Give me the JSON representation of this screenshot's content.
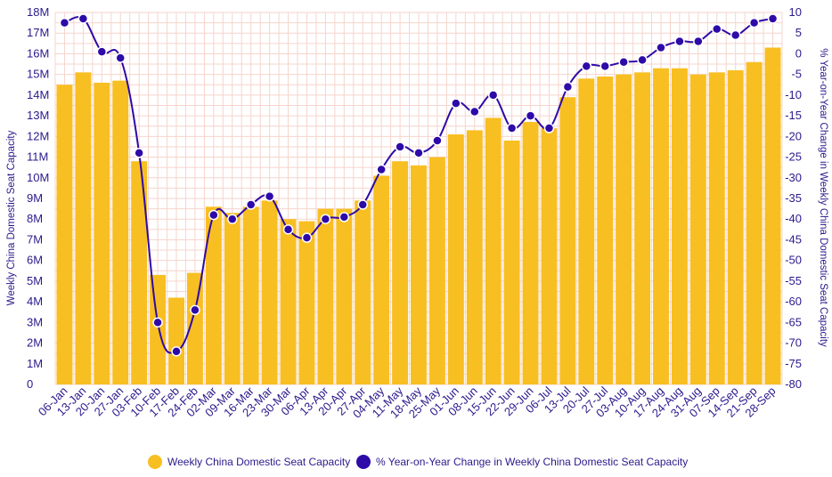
{
  "chart_data": {
    "type": "bar+line",
    "categories": [
      "06-Jan",
      "13-Jan",
      "20-Jan",
      "27-Jan",
      "03-Feb",
      "10-Feb",
      "17-Feb",
      "24-Feb",
      "02-Mar",
      "09-Mar",
      "16-Mar",
      "23-Mar",
      "30-Mar",
      "06-Apr",
      "13-Apr",
      "20-Apr",
      "27-Apr",
      "04-May",
      "11-May",
      "18-May",
      "25-May",
      "01-Jun",
      "08-Jun",
      "15-Jun",
      "22-Jun",
      "29-Jun",
      "06-Jul",
      "13-Jul",
      "20-Jul",
      "27-Jul",
      "03-Aug",
      "10-Aug",
      "17-Aug",
      "24-Aug",
      "31-Aug",
      "07-Sep",
      "14-Sep",
      "21-Sep",
      "28-Sep"
    ],
    "series": [
      {
        "name": "Weekly China Domestic Seat Capacity",
        "type": "bar",
        "axis": "left",
        "color": "#f8bf22",
        "values": [
          14.5,
          15.1,
          14.6,
          14.7,
          10.8,
          5.3,
          4.2,
          5.4,
          8.6,
          8.3,
          8.6,
          8.9,
          8.0,
          7.9,
          8.5,
          8.5,
          8.9,
          10.1,
          10.8,
          10.6,
          11.0,
          12.1,
          12.3,
          12.9,
          11.8,
          12.7,
          12.4,
          13.9,
          14.8,
          14.9,
          15.0,
          15.1,
          15.3,
          15.3,
          15.0,
          15.1,
          15.2,
          15.6,
          16.3
        ]
      },
      {
        "name": "% Year-on-Year Change in Weekly China Domestic Seat Capacity",
        "type": "line",
        "axis": "right",
        "color": "#2e0aa8",
        "values": [
          7.5,
          8.5,
          0.5,
          -1,
          -24,
          -65,
          -72,
          -62,
          -39,
          -40,
          -36.5,
          -34.5,
          -42.5,
          -44.5,
          -40,
          -39.5,
          -36.5,
          -28,
          -22.5,
          -24,
          -21,
          -12,
          -14,
          -10,
          -18,
          -15,
          -18,
          -8,
          -3,
          -3,
          -2,
          -1.5,
          1.5,
          3,
          3,
          6,
          4.5,
          7.5,
          8.5
        ]
      }
    ],
    "y_left": {
      "label": "Weekly China Domestic Seat Capacity",
      "min": 0,
      "max": 18,
      "ticks": [
        "0",
        "1M",
        "2M",
        "3M",
        "4M",
        "5M",
        "6M",
        "7M",
        "8M",
        "9M",
        "10M",
        "11M",
        "12M",
        "13M",
        "14M",
        "15M",
        "16M",
        "17M",
        "18M"
      ]
    },
    "y_right": {
      "label": "% Year-on-Year Change in Weekly China Domestic Seat Capacity",
      "min": -80,
      "max": 10,
      "ticks": [
        "10",
        "5",
        "0",
        "-5",
        "-10",
        "-15",
        "-20",
        "-25",
        "-30",
        "-35",
        "-40",
        "-45",
        "-50",
        "-55",
        "-60",
        "-65",
        "-70",
        "-75",
        "-80"
      ]
    },
    "grid": true,
    "legend": "bottom-center"
  }
}
